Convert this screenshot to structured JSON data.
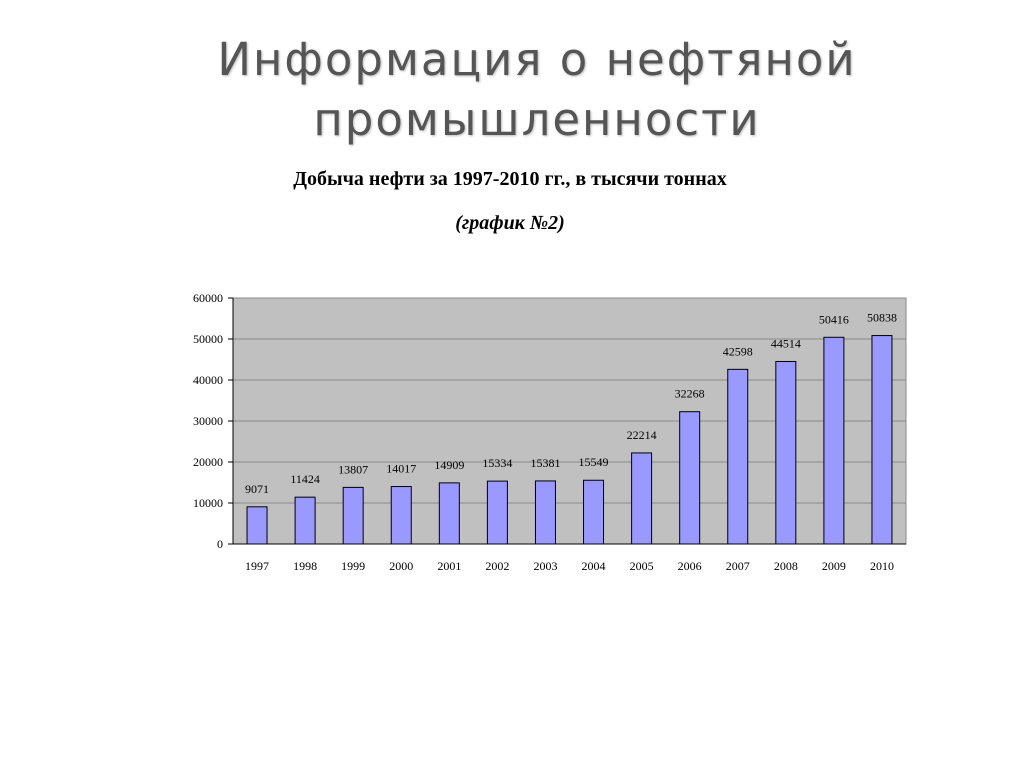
{
  "slide": {
    "title_line1": "Информация о нефтяной",
    "title_line2": "промышленности"
  },
  "chart_data": {
    "type": "bar",
    "title": "Добыча нефти за 1997-2010 гг., в тысячи тоннах",
    "subtitle": "(график №2)",
    "xlabel": "",
    "ylabel": "",
    "categories": [
      "1997",
      "1998",
      "1999",
      "2000",
      "2001",
      "2002",
      "2003",
      "2004",
      "2005",
      "2006",
      "2007",
      "2008",
      "2009",
      "2010"
    ],
    "values": [
      9071,
      11424,
      13807,
      14017,
      14909,
      15334,
      15381,
      15549,
      22214,
      32268,
      42598,
      44514,
      50416,
      50838
    ],
    "ylim": [
      0,
      60000
    ],
    "yticks": [
      0,
      10000,
      20000,
      30000,
      40000,
      50000,
      60000
    ],
    "grid": true,
    "legend": "none",
    "colors": {
      "bar_fill": "#9999ff",
      "bar_stroke": "#000000",
      "plot_background": "#c0c0c0",
      "gridline": "#8a8a8a"
    }
  }
}
